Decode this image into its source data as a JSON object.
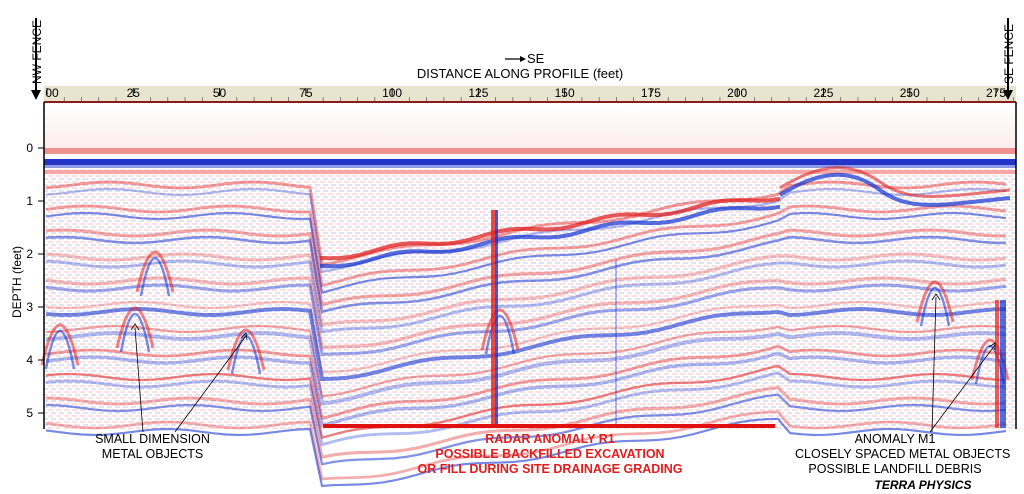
{
  "figure": {
    "direction_label": "SE",
    "x_axis_title": "DISTANCE ALONG PROFILE (feet)",
    "y_axis_title": "DEPTH (feet)",
    "left_fence_label": "NW FENCE",
    "right_fence_label": "SE FENCE",
    "credit": "TERRA PHYSICS",
    "colors": {
      "positive": "#e02020",
      "negative": "#1030d0",
      "ruler": "#e8e4d0",
      "anomaly_bar": "#e01010"
    }
  },
  "axes": {
    "x_ticks": [
      0,
      25,
      50,
      75,
      100,
      125,
      150,
      175,
      200,
      225,
      250,
      275
    ],
    "x_tick_labels": [
      "00",
      "25",
      "50",
      "75",
      "100",
      "125",
      "150",
      "175",
      "200",
      "225",
      "250",
      "275"
    ],
    "x_range": [
      0,
      280
    ],
    "y_ticks": [
      0,
      1,
      2,
      3,
      4,
      5
    ],
    "y_tick_labels": [
      "0",
      "1",
      "2",
      "3",
      "4",
      "5"
    ],
    "y_range": [
      -0.8,
      5.35
    ]
  },
  "annotations": {
    "small_objects": [
      "SMALL DIMENSION",
      "METAL OBJECTS"
    ],
    "radar_anomaly": [
      "RADAR ANOMALY R1",
      "POSSIBLE BACKFILLED EXCAVATION",
      "OR FILL DURING SITE DRAINAGE GRADING"
    ],
    "anomaly_m1": [
      "ANOMALY M1",
      "CLOSELY SPACED METAL OBJECTS",
      "POSSIBLE LANDFILL DEBRIS"
    ]
  },
  "anomaly_r1_extent_ft": [
    80,
    211
  ]
}
